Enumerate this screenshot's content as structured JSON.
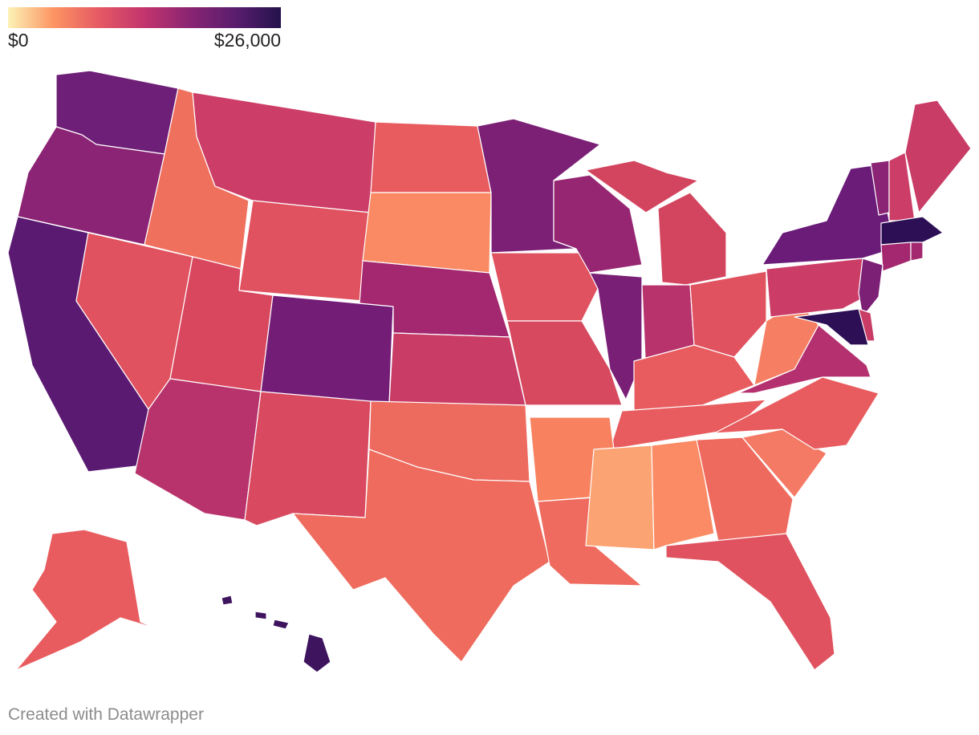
{
  "legend": {
    "min_label": "$0",
    "max_label": "$26,000",
    "color_scale": [
      "#fcf2b6",
      "#fc9563",
      "#e55964",
      "#c2346d",
      "#8a2473",
      "#5a1d6e",
      "#24124b"
    ]
  },
  "states": [
    {
      "id": "WA",
      "color": "#6e1f77"
    },
    {
      "id": "OR",
      "color": "#8c2475"
    },
    {
      "id": "CA",
      "color": "#5b1a72"
    },
    {
      "id": "NV",
      "color": "#e0525f"
    },
    {
      "id": "ID",
      "color": "#f0705e"
    },
    {
      "id": "MT",
      "color": "#cc3e67"
    },
    {
      "id": "WY",
      "color": "#e0525f"
    },
    {
      "id": "UT",
      "color": "#d9475f"
    },
    {
      "id": "AZ",
      "color": "#b8336c"
    },
    {
      "id": "CO",
      "color": "#731d77"
    },
    {
      "id": "NM",
      "color": "#d94a60"
    },
    {
      "id": "ND",
      "color": "#e85c5f"
    },
    {
      "id": "SD",
      "color": "#fa8a63"
    },
    {
      "id": "NE",
      "color": "#a3286f"
    },
    {
      "id": "KS",
      "color": "#c83c66"
    },
    {
      "id": "OK",
      "color": "#ed6a5e"
    },
    {
      "id": "TX",
      "color": "#ee6b5e"
    },
    {
      "id": "MN",
      "color": "#7c2076"
    },
    {
      "id": "IA",
      "color": "#e0525f"
    },
    {
      "id": "MO",
      "color": "#d6495f"
    },
    {
      "id": "AR",
      "color": "#f8825f"
    },
    {
      "id": "LA",
      "color": "#ef6b5f"
    },
    {
      "id": "WI",
      "color": "#962672"
    },
    {
      "id": "IL",
      "color": "#7a1f76"
    },
    {
      "id": "MI",
      "color": "#d3455f"
    },
    {
      "id": "IN",
      "color": "#b8336c"
    },
    {
      "id": "OH",
      "color": "#e0525f"
    },
    {
      "id": "KY",
      "color": "#e85c5f"
    },
    {
      "id": "TN",
      "color": "#e85c5f"
    },
    {
      "id": "MS",
      "color": "#fba373"
    },
    {
      "id": "AL",
      "color": "#fb8b64"
    },
    {
      "id": "GA",
      "color": "#ef6a5e"
    },
    {
      "id": "FL",
      "color": "#e0525f"
    },
    {
      "id": "SC",
      "color": "#f47a65"
    },
    {
      "id": "NC",
      "color": "#e85c5f"
    },
    {
      "id": "VA",
      "color": "#b4306e"
    },
    {
      "id": "WV",
      "color": "#f67f63"
    },
    {
      "id": "PA",
      "color": "#cb3c66"
    },
    {
      "id": "NY",
      "color": "#6a1c78"
    },
    {
      "id": "VT",
      "color": "#8c2475"
    },
    {
      "id": "NH",
      "color": "#cc3e67"
    },
    {
      "id": "ME",
      "color": "#c83c66"
    },
    {
      "id": "MA",
      "color": "#2c0f55"
    },
    {
      "id": "CT",
      "color": "#a3286f"
    },
    {
      "id": "RI",
      "color": "#a3286f"
    },
    {
      "id": "NJ",
      "color": "#7c2076"
    },
    {
      "id": "DE",
      "color": "#c83c66"
    },
    {
      "id": "MD",
      "color": "#2c0f55"
    },
    {
      "id": "AK",
      "color": "#e85c5f"
    },
    {
      "id": "HI",
      "color": "#3f145f"
    }
  ],
  "footer": {
    "credit": "Created with Datawrapper"
  }
}
